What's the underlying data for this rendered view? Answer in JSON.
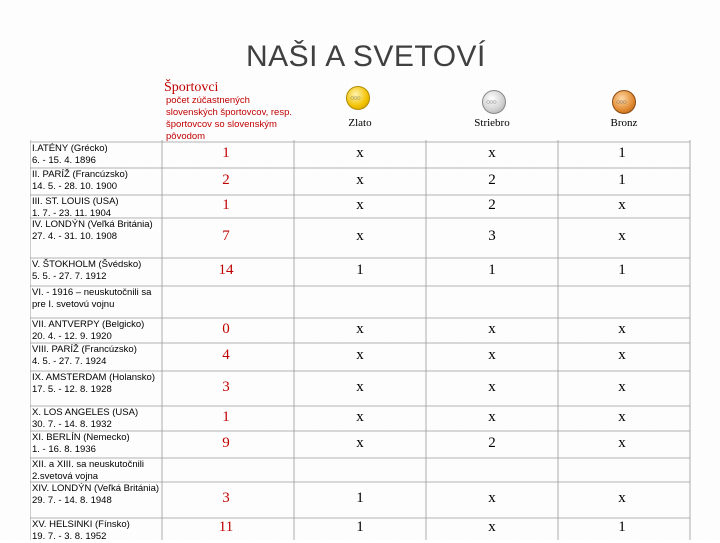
{
  "title": "NAŠI A SVETOVÍ",
  "header": {
    "sportovci": "Športovci",
    "pocet": "počet zúčastnených slovenských športovcov, resp. športovcov so slovenským pôvodom",
    "zlato": "Zlato",
    "striebro": "Striebro",
    "bronz": "Bronz",
    "medal_icons": [
      "gold-medal-icon",
      "silver-medal-icon",
      "bronze-medal-icon"
    ]
  },
  "rows": [
    {
      "games": "I.ATÉNY (Grécko)\n6. - 15. 4. 1896",
      "count": "1",
      "gold": "x",
      "silver": "x",
      "bronze": "1"
    },
    {
      "games": "II. PARÍŽ (Francúzsko)\n14. 5. - 28. 10. 1900",
      "count": "2",
      "gold": "x",
      "silver": "2",
      "bronze": "1"
    },
    {
      "games": "III. ST. LOUIS (USA)\n1. 7. - 23. 11. 1904",
      "count": "1",
      "gold": "x",
      "silver": "2",
      "bronze": "x"
    },
    {
      "games": "IV. LONDÝN (Veľká Británia)\n27. 4. - 31. 10. 1908",
      "count": "7",
      "gold": "x",
      "silver": "3",
      "bronze": "x"
    },
    {
      "games": "V. ŠTOKHOLM (Švédsko)\n5. 5. - 27. 7. 1912",
      "count": "14",
      "gold": "1",
      "silver": "1",
      "bronze": "1"
    },
    {
      "games": "VI. - 1916 – neuskutočnili sa pre I. svetovú vojnu",
      "count": "",
      "gold": "",
      "silver": "",
      "bronze": ""
    },
    {
      "games": "VII. ANTVERPY (Belgicko)\n20. 4. - 12. 9. 1920",
      "count": "0",
      "gold": "x",
      "silver": "x",
      "bronze": "x"
    },
    {
      "games": "VIII. PARÍŽ (Francúzsko)\n4. 5. - 27. 7. 1924",
      "count": "4",
      "gold": "x",
      "silver": "x",
      "bronze": "x"
    },
    {
      "games": "IX. AMSTERDAM (Holansko)\n17. 5. - 12. 8. 1928",
      "count": "3",
      "gold": "x",
      "silver": "x",
      "bronze": "x"
    },
    {
      "games": "X. LOS ANGELES (USA)\n30. 7. - 14. 8. 1932",
      "count": "1",
      "gold": "x",
      "silver": "x",
      "bronze": "x"
    },
    {
      "games": "XI. BERLÍN (Nemecko)\n1. - 16. 8. 1936",
      "count": "9",
      "gold": "x",
      "silver": "2",
      "bronze": "x"
    },
    {
      "games": "XII. a XIII. sa neuskutočnili 2.svetová vojna",
      "count": "",
      "gold": "",
      "silver": "",
      "bronze": ""
    },
    {
      "games": "XIV. LONDÝN (Veľká Británia)\n29. 7. - 14. 8. 1948",
      "count": "3",
      "gold": "1",
      "silver": "x",
      "bronze": "x"
    },
    {
      "games": "XV. HELSINKI (Fínsko)\n19. 7. - 3. 8. 1952",
      "count": "11",
      "gold": "1",
      "silver": "x",
      "bronze": "1"
    }
  ]
}
